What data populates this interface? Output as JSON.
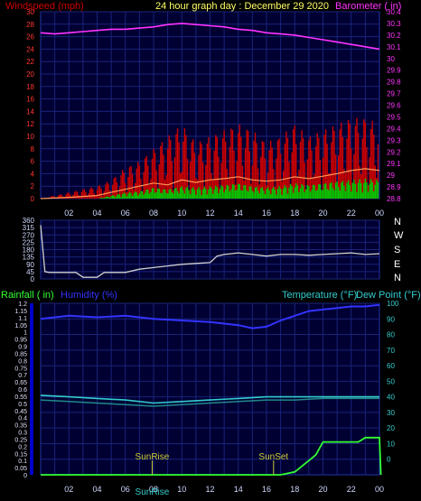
{
  "header": {
    "left_label": "Windspeed (mph)",
    "title": "24 hour graph day : December 29 2020",
    "right_label": "Barometer ( in)"
  },
  "direction_labels": [
    "N",
    "W",
    "S",
    "E",
    "N"
  ],
  "bottom_header": {
    "rainfall": "Rainfall ( in)",
    "humidity": "Humidity (%)",
    "temperature": "Temperature (°F)",
    "dewpoint": "Dew Point (°F)"
  },
  "markers": {
    "sunrise": "SunRise",
    "sunset": "SunSet",
    "bottom_tick": "SunRise"
  },
  "colors": {
    "barometer": "#ff33ff",
    "gust": "#cc0000",
    "wind_avg": "#ff9a55",
    "wind_low": "#00cc00",
    "direction": "#d0d0d0",
    "humidity": "#3333ff",
    "temperature": "#33cccc",
    "dewpoint": "#228888",
    "rain": "#33ff33",
    "grid": "#1a237a",
    "panel_bg": "#000033"
  },
  "chart_data": [
    {
      "type": "line",
      "title": "24 hour graph day : December 29 2020",
      "x_tick_labels": [
        "02",
        "04",
        "06",
        "08",
        "10",
        "12",
        "14",
        "16",
        "18",
        "20",
        "22",
        "00"
      ],
      "x_hours": [
        2,
        4,
        6,
        8,
        10,
        12,
        14,
        16,
        18,
        20,
        22,
        24
      ],
      "xlim": [
        0,
        24
      ],
      "left_axis": {
        "label": "Windspeed (mph)",
        "ylim": [
          0,
          30
        ],
        "ticks": [
          0,
          2,
          4,
          6,
          8,
          10,
          12,
          14,
          16,
          18,
          20,
          22,
          24,
          26,
          28,
          30
        ]
      },
      "right_axis": {
        "label": "Barometer ( in)",
        "ylim": [
          28.8,
          30.4
        ],
        "ticks": [
          "28.8",
          "28.9",
          "29",
          "29.1",
          "29.2",
          "29.3",
          "29.4",
          "29.5",
          "29.6",
          "29.7",
          "29.8",
          "29.9",
          "30",
          "30.1",
          "30.2",
          "30.3",
          "30.4"
        ]
      },
      "series": [
        {
          "name": "Barometer",
          "axis": "right",
          "x": [
            0,
            1,
            2,
            3,
            4,
            5,
            6,
            7,
            8,
            9,
            10,
            11,
            12,
            13,
            14,
            15,
            16,
            17,
            18,
            19,
            20,
            21,
            22,
            23,
            24
          ],
          "y": [
            30.22,
            30.21,
            30.22,
            30.23,
            30.24,
            30.25,
            30.25,
            30.26,
            30.27,
            30.29,
            30.3,
            30.29,
            30.28,
            30.27,
            30.25,
            30.24,
            30.22,
            30.21,
            30.2,
            30.18,
            30.16,
            30.14,
            30.12,
            30.1,
            30.08
          ]
        },
        {
          "name": "Wind gust",
          "axis": "left",
          "x": [
            0,
            2,
            4,
            5,
            6,
            7,
            8,
            9,
            10,
            11,
            12,
            13,
            14,
            15,
            16,
            17,
            18,
            19,
            20,
            21,
            22,
            23,
            24
          ],
          "y": [
            0,
            1,
            2,
            3,
            5,
            6,
            8,
            10,
            12,
            9,
            10,
            11,
            12,
            11,
            9,
            10,
            12,
            10,
            11,
            12,
            13,
            13,
            12
          ]
        },
        {
          "name": "Wind average",
          "axis": "left",
          "x": [
            0,
            2,
            4,
            5,
            6,
            7,
            8,
            9,
            10,
            11,
            12,
            13,
            14,
            15,
            16,
            17,
            18,
            19,
            20,
            21,
            22,
            23,
            24
          ],
          "y": [
            0,
            0.2,
            0.5,
            1,
            1.5,
            2,
            2.5,
            2.2,
            3,
            2.6,
            3,
            3.2,
            3.5,
            3,
            2.8,
            3,
            3.5,
            3.2,
            3.6,
            4,
            4.5,
            4.8,
            4.5
          ]
        },
        {
          "name": "Wind low",
          "axis": "left",
          "x": [
            0,
            2,
            4,
            5,
            6,
            7,
            8,
            9,
            10,
            11,
            12,
            13,
            14,
            15,
            16,
            17,
            18,
            19,
            20,
            21,
            22,
            23,
            24
          ],
          "y": [
            0,
            0,
            0,
            0.5,
            1,
            1.2,
            1.8,
            1.5,
            2,
            1.8,
            2,
            2.2,
            2.5,
            2,
            1.8,
            2,
            2.5,
            2.2,
            2.5,
            2.8,
            3,
            3.2,
            3
          ]
        }
      ]
    },
    {
      "type": "line",
      "title": "",
      "xlim": [
        0,
        24
      ],
      "left_axis": {
        "ylim": [
          0,
          360
        ],
        "ticks": [
          0,
          45,
          90,
          135,
          180,
          225,
          270,
          315,
          360
        ],
        "tick_labels": [
          "0",
          "45",
          "90",
          "135",
          "180",
          "225",
          "270",
          "315",
          "360"
        ]
      },
      "series": [
        {
          "name": "Wind direction",
          "x": [
            0,
            0.3,
            0.6,
            2.5,
            3,
            4,
            4.5,
            6,
            7,
            8,
            9,
            10,
            11,
            12,
            12.5,
            13,
            14,
            15,
            16,
            17,
            18,
            19,
            20,
            21,
            22,
            23,
            24
          ],
          "y": [
            330,
            45,
            40,
            40,
            10,
            10,
            40,
            40,
            60,
            70,
            80,
            90,
            95,
            100,
            140,
            150,
            160,
            150,
            140,
            150,
            150,
            145,
            150,
            155,
            160,
            150,
            155
          ]
        }
      ]
    },
    {
      "type": "line",
      "title": "",
      "x_tick_labels": [
        "02",
        "04",
        "06",
        "08",
        "10",
        "12",
        "14",
        "16",
        "18",
        "20",
        "22",
        "00"
      ],
      "xlim": [
        0,
        24
      ],
      "left_axis": {
        "label": "Rainfall ( in)",
        "ylim": [
          0,
          1.2
        ],
        "ticks": [
          "0",
          "0.05",
          "0.1",
          "0.15",
          "0.2",
          "0.25",
          "0.3",
          "0.35",
          "0.4",
          "0.45",
          "0.5",
          "0.55",
          "0.6",
          "0.65",
          "0.7",
          "0.75",
          "0.8",
          "0.85",
          "0.9",
          "0.95",
          "1",
          "1.05",
          "1.1",
          "1.15",
          "1.2"
        ]
      },
      "right_axis": {
        "label": "Temperature (°F)",
        "ylim": [
          -10,
          100
        ],
        "ticks": [
          0,
          10,
          20,
          30,
          40,
          50,
          60,
          70,
          80,
          90,
          100
        ]
      },
      "series": [
        {
          "name": "Humidity",
          "axis": "right",
          "x": [
            0,
            2,
            4,
            6,
            8,
            10,
            12,
            14,
            15,
            16,
            17,
            18,
            19,
            20,
            21,
            22,
            23,
            24
          ],
          "y": [
            90,
            92,
            91,
            92,
            90,
            89,
            88,
            86,
            84,
            85,
            89,
            92,
            95,
            96,
            97,
            98,
            98,
            99
          ]
        },
        {
          "name": "Temperature",
          "axis": "right",
          "x": [
            0,
            2,
            4,
            6,
            8,
            10,
            12,
            14,
            16,
            18,
            20,
            22,
            24
          ],
          "y": [
            41,
            40,
            39,
            38,
            36,
            37,
            38,
            39,
            40,
            40,
            40,
            40,
            40
          ]
        },
        {
          "name": "Dew Point",
          "axis": "right",
          "x": [
            0,
            2,
            4,
            6,
            8,
            10,
            12,
            14,
            16,
            18,
            20,
            22,
            24
          ],
          "y": [
            38,
            37,
            36,
            35,
            34,
            35,
            36,
            37,
            38,
            38,
            39,
            39,
            39
          ]
        },
        {
          "name": "Rainfall",
          "axis": "left",
          "x": [
            0,
            17,
            18,
            19,
            19.5,
            20,
            21,
            22,
            22.5,
            23,
            23.9,
            24,
            24.1
          ],
          "y": [
            0,
            0,
            0.02,
            0.1,
            0.14,
            0.23,
            0.23,
            0.23,
            0.23,
            0.26,
            0.26,
            0.26,
            0
          ]
        }
      ],
      "annotations": [
        {
          "label": "SunRise",
          "x": 7.9
        },
        {
          "label": "SunSet",
          "x": 16.5
        }
      ]
    }
  ]
}
